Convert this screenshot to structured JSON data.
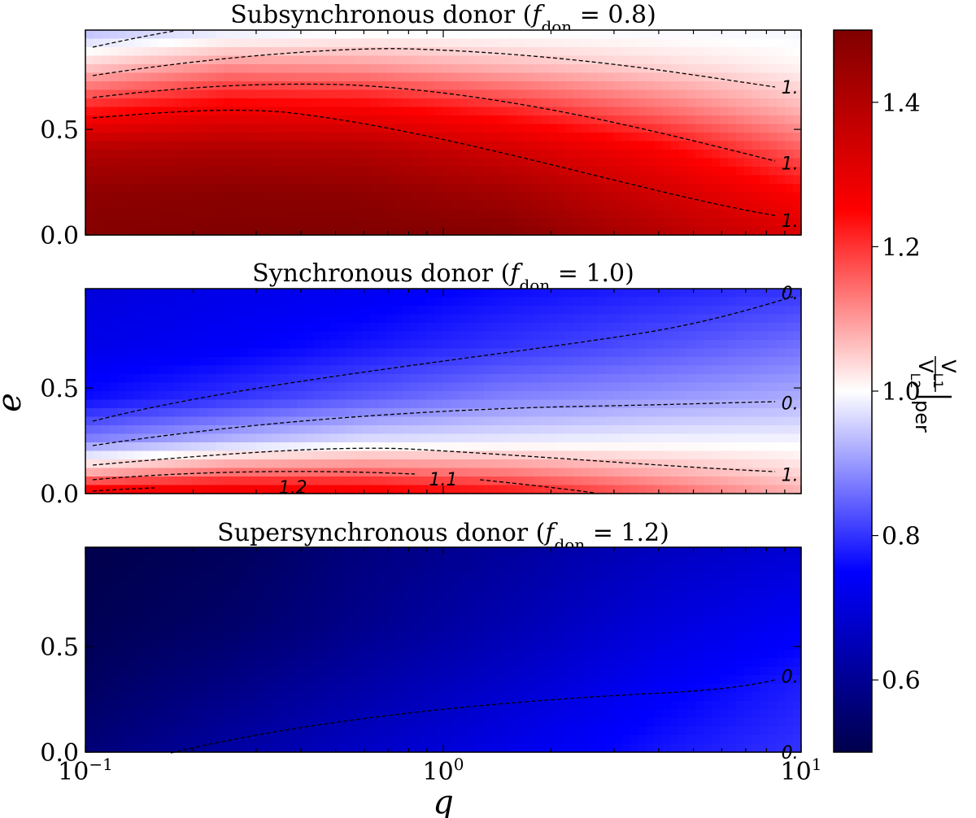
{
  "chart_data": {
    "type": "heatmap",
    "colormap": "seismic",
    "xlabel": "q",
    "ylabel": "e",
    "xscale": "log",
    "xlim": [
      0.1,
      10
    ],
    "x_ticks": [
      {
        "value": 0.1,
        "base": "10",
        "exp": "−1"
      },
      {
        "value": 1,
        "base": "10",
        "exp": "0"
      },
      {
        "value": 10,
        "base": "10",
        "exp": "1"
      }
    ],
    "ylim": [
      0,
      0.97
    ],
    "y_ticks": [
      {
        "value": 0.0,
        "label": "0.0"
      },
      {
        "value": 0.5,
        "label": "0.5"
      }
    ],
    "colorbar": {
      "label_num": "V",
      "label_num_sub": "L1",
      "label_den": "V",
      "label_den_sub": "L2",
      "label_suffix": "per",
      "range": [
        0.5,
        1.5
      ],
      "ticks": [
        {
          "value": 0.6,
          "label": "0.6"
        },
        {
          "value": 0.8,
          "label": "0.8"
        },
        {
          "value": 1.0,
          "label": "1.0"
        },
        {
          "value": 1.2,
          "label": "1.2"
        },
        {
          "value": 1.4,
          "label": "1.4"
        }
      ]
    },
    "panels": [
      {
        "title_pre": "Subsynchronous donor (",
        "title_var": "f",
        "title_sub": "don",
        "title_post": " = 0.8)",
        "value_field": [
          {
            "e": 0.0,
            "values": [
              1.49,
              1.5,
              1.5,
              1.49,
              1.4,
              1.32
            ]
          },
          {
            "e": 0.2,
            "values": [
              1.47,
              1.48,
              1.47,
              1.43,
              1.34,
              1.25
            ]
          },
          {
            "e": 0.4,
            "values": [
              1.4,
              1.41,
              1.4,
              1.34,
              1.26,
              1.16
            ]
          },
          {
            "e": 0.6,
            "values": [
              1.22,
              1.27,
              1.26,
              1.21,
              1.14,
              1.07
            ]
          },
          {
            "e": 0.8,
            "values": [
              1.05,
              1.11,
              1.1,
              1.07,
              1.04,
              1.01
            ]
          },
          {
            "e": 0.97,
            "values": [
              0.93,
              0.97,
              0.99,
              0.99,
              0.99,
              0.99
            ]
          }
        ],
        "contour_labels": [
          {
            "text": "1.",
            "q": 9.3,
            "e": 0.7
          },
          {
            "text": "1.",
            "q": 9.3,
            "e": 0.34
          },
          {
            "text": "1.",
            "q": 9.3,
            "e": 0.07
          }
        ]
      },
      {
        "title_pre": "Synchronous donor (",
        "title_var": "f",
        "title_sub": "don",
        "title_post": " = 1.0)",
        "value_field": [
          {
            "e": 0.0,
            "values": [
              1.3,
              1.3,
              1.28,
              1.24,
              1.16,
              1.08
            ]
          },
          {
            "e": 0.1,
            "values": [
              1.08,
              1.14,
              1.15,
              1.13,
              1.08,
              1.04
            ]
          },
          {
            "e": 0.25,
            "values": [
              0.88,
              0.93,
              0.97,
              0.98,
              0.99,
              0.99
            ]
          },
          {
            "e": 0.45,
            "values": [
              0.76,
              0.8,
              0.84,
              0.88,
              0.9,
              0.92
            ]
          },
          {
            "e": 0.7,
            "values": [
              0.72,
              0.74,
              0.77,
              0.8,
              0.83,
              0.86
            ]
          },
          {
            "e": 0.97,
            "values": [
              0.7,
              0.72,
              0.73,
              0.76,
              0.78,
              0.8
            ]
          }
        ],
        "contour_labels": [
          {
            "text": "0.",
            "q": 9.3,
            "e": 0.95
          },
          {
            "text": "0.",
            "q": 9.3,
            "e": 0.43
          },
          {
            "text": "1.",
            "q": 9.3,
            "e": 0.09
          },
          {
            "text": "1.1",
            "q": 1.0,
            "e": 0.07
          },
          {
            "text": "1.2",
            "q": 0.38,
            "e": 0.03
          }
        ]
      },
      {
        "title_pre": "Supersynchronous donor (",
        "title_var": "f",
        "title_sub": "don",
        "title_post": " = 1.2)",
        "value_field": [
          {
            "e": 0.0,
            "values": [
              0.56,
              0.62,
              0.67,
              0.72,
              0.77,
              0.8
            ]
          },
          {
            "e": 0.3,
            "values": [
              0.53,
              0.58,
              0.63,
              0.68,
              0.74,
              0.78
            ]
          },
          {
            "e": 0.6,
            "values": [
              0.51,
              0.54,
              0.59,
              0.64,
              0.7,
              0.74
            ]
          },
          {
            "e": 0.97,
            "values": [
              0.5,
              0.52,
              0.57,
              0.61,
              0.66,
              0.69
            ]
          }
        ],
        "contour_labels": [
          {
            "text": "0.",
            "q": 9.3,
            "e": 0.36
          },
          {
            "text": "0.",
            "q": 9.3,
            "e": 0.0
          }
        ]
      }
    ]
  }
}
